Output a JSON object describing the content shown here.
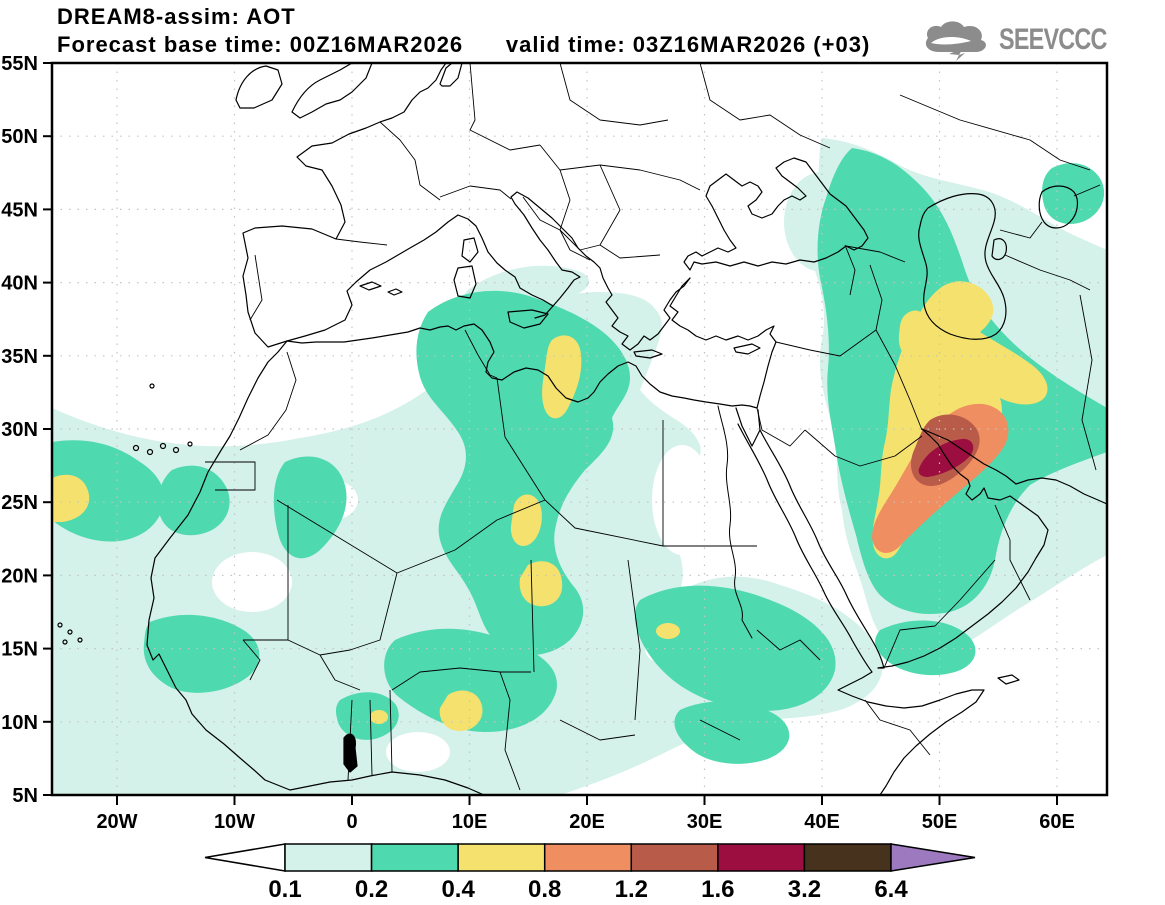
{
  "header": {
    "title": "DREAM8-assim: AOT",
    "subtitle": "Forecast base time: 00Z16MAR2026      valid time: 03Z16MAR2026 (+03)",
    "logo_text": "SEEVCCC"
  },
  "chart_data": {
    "type": "heatmap",
    "title": "DREAM8-assim: AOT",
    "model": "DREAM8-assim",
    "variable": "AOT (aerosol optical thickness)",
    "forecast_base_time": "00Z16MAR2026",
    "valid_time": "03Z16MAR2026 (+03)",
    "lat_ticks": [
      "55N",
      "50N",
      "45N",
      "40N",
      "35N",
      "30N",
      "25N",
      "20N",
      "15N",
      "10N",
      "5N"
    ],
    "lon_ticks": [
      "20W",
      "10W",
      "0",
      "10E",
      "20E",
      "30E",
      "40E",
      "50E",
      "60E"
    ],
    "lat_range_deg": [
      5,
      55
    ],
    "lon_range_deg": [
      -25.5,
      64.5
    ],
    "grid": "dotted",
    "legend_position": "bottom",
    "levels": [
      0.1,
      0.2,
      0.4,
      0.8,
      1.2,
      1.6,
      3.2,
      6.4
    ],
    "palette_hex": [
      "#ffffff",
      "#d4f1ea",
      "#4fd9ae",
      "#f5e26e",
      "#ef8e61",
      "#b95b49",
      "#9b0e3f",
      "#47321d",
      "#9d7ac0"
    ],
    "regions": [
      {
        "area": "eastern Atlantic / West Africa coast ~25N",
        "aot": "0.2-0.4 with 0.4-0.8 patch at map's west edge"
      },
      {
        "area": "West Africa / Senegal / Mali / Mauritania",
        "aot": "0.1-0.4 widespread"
      },
      {
        "area": "central Sahara: NE Algeria / NW Libya ~8E,34N",
        "aot": "0.4-0.8 elongated spot"
      },
      {
        "area": "Libya/Chad ~14E,21N and ~15E,19N",
        "aot": "0.4-0.8 spots in 0.2-0.4 mass"
      },
      {
        "area": "Nigeria/Benin ~8E,10N and ~2E,10N",
        "aot": "0.4-0.8 spots"
      },
      {
        "area": "Sudan ~17E,12N",
        "aot": "0.4-0.8 small spot"
      },
      {
        "area": "southern Italy / Ionian Sea",
        "aot": "0.1-0.2 streak"
      },
      {
        "area": "Ukraine - Caucasus - Caspian corridor",
        "aot": "0.1-0.4 plume from ~50N to Iran"
      },
      {
        "area": "Iraq / Kuwait / Persian Gulf ~47E,29N",
        "aot": "maximum: 0.8-1.2 band, 1.2-1.6 core, 1.6-3.2 inner core"
      },
      {
        "area": "Iran and Arabian Peninsula",
        "aot": "0.1-0.4 broad envelope"
      }
    ]
  },
  "colorbar": {
    "labels": [
      "0.1",
      "0.2",
      "0.4",
      "0.8",
      "1.2",
      "1.6",
      "3.2",
      "6.4"
    ],
    "box_colors": [
      "#d4f1ea",
      "#4fd9ae",
      "#f5e26e",
      "#ef8e61",
      "#b95b49",
      "#9b0e3f",
      "#47321d"
    ],
    "arrow_left_color": "#ffffff",
    "arrow_right_color": "#9d7ac0"
  }
}
